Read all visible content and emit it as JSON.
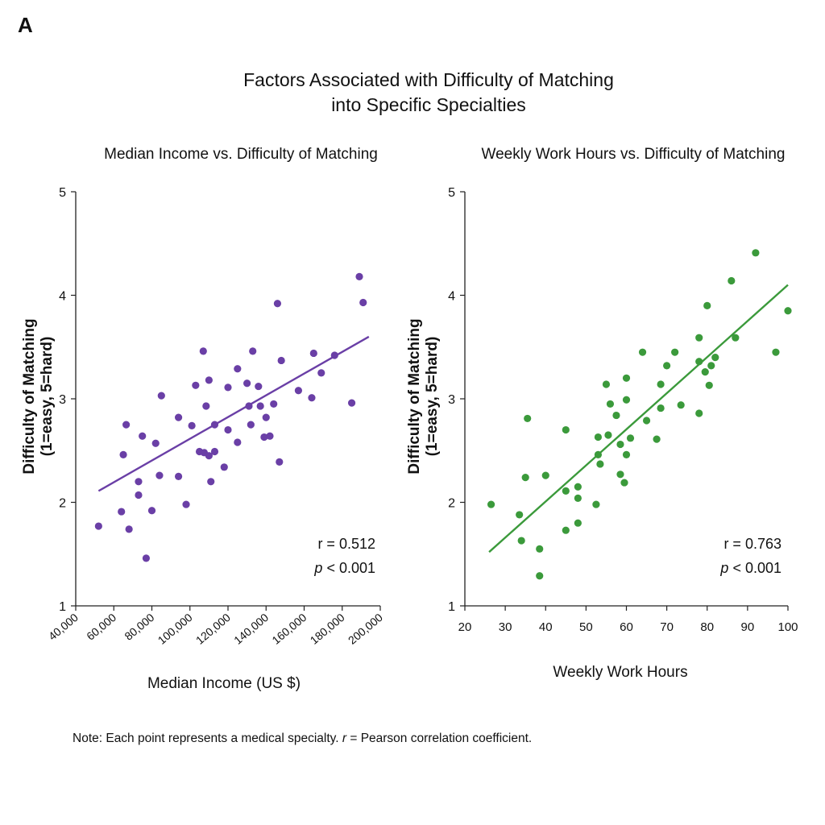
{
  "panel_label": "A",
  "title_line1": "Factors Associated with Difficulty of Matching",
  "title_line2": "into Specific Specialties",
  "note_prefix": "Note: Each point represents a medical specialty. ",
  "note_r": "r",
  "note_suffix": " = Pearson correlation coefficient.",
  "chart_data": [
    {
      "type": "scatter",
      "title": "Median Income vs. Difficulty of Matching",
      "xlabel": "Median Income (US $)",
      "ylabel_line1": "Difficulty of Matching",
      "ylabel_line2": "(1=easy, 5=hard)",
      "xlim": [
        40000,
        200000
      ],
      "ylim": [
        1,
        5
      ],
      "xticks": [
        40000,
        60000,
        80000,
        100000,
        120000,
        140000,
        160000,
        180000,
        200000
      ],
      "xtick_labels": [
        "40,000",
        "60,000",
        "80,000",
        "100,000",
        "120,000",
        "140,000",
        "160,000",
        "180,000",
        "200,000"
      ],
      "yticks": [
        1,
        2,
        3,
        4,
        5
      ],
      "color": "#6a3fa6",
      "r_text": "r = 0.512",
      "p_text": "p < 0.001",
      "trendline": {
        "x": [
          52000,
          194000
        ],
        "y": [
          2.11,
          3.6
        ]
      },
      "points": [
        [
          52000,
          1.77
        ],
        [
          64000,
          1.91
        ],
        [
          65000,
          2.46
        ],
        [
          66500,
          2.75
        ],
        [
          68000,
          1.74
        ],
        [
          73000,
          2.2
        ],
        [
          73000,
          2.07
        ],
        [
          75000,
          2.64
        ],
        [
          77000,
          1.46
        ],
        [
          80000,
          1.92
        ],
        [
          82000,
          2.57
        ],
        [
          84000,
          2.26
        ],
        [
          85000,
          3.03
        ],
        [
          94000,
          2.82
        ],
        [
          94000,
          2.25
        ],
        [
          98000,
          1.98
        ],
        [
          101000,
          2.74
        ],
        [
          103000,
          3.13
        ],
        [
          105000,
          2.49
        ],
        [
          107000,
          3.46
        ],
        [
          107500,
          2.48
        ],
        [
          108500,
          2.93
        ],
        [
          110000,
          3.18
        ],
        [
          110000,
          2.45
        ],
        [
          111000,
          2.2
        ],
        [
          113000,
          2.49
        ],
        [
          113000,
          2.75
        ],
        [
          118000,
          2.34
        ],
        [
          120000,
          2.7
        ],
        [
          120000,
          3.11
        ],
        [
          125000,
          2.58
        ],
        [
          125000,
          3.29
        ],
        [
          130000,
          3.15
        ],
        [
          131000,
          2.93
        ],
        [
          132000,
          2.75
        ],
        [
          133000,
          3.46
        ],
        [
          136000,
          3.12
        ],
        [
          137000,
          2.93
        ],
        [
          139000,
          2.63
        ],
        [
          140000,
          2.82
        ],
        [
          142000,
          2.64
        ],
        [
          144000,
          2.95
        ],
        [
          146000,
          3.92
        ],
        [
          147000,
          2.39
        ],
        [
          148000,
          3.37
        ],
        [
          157000,
          3.08
        ],
        [
          164000,
          3.01
        ],
        [
          165000,
          3.44
        ],
        [
          169000,
          3.25
        ],
        [
          176000,
          3.42
        ],
        [
          185000,
          2.96
        ],
        [
          189000,
          4.18
        ],
        [
          191000,
          3.93
        ]
      ]
    },
    {
      "type": "scatter",
      "title": "Weekly Work Hours vs. Difficulty of Matching",
      "xlabel": "Weekly Work Hours",
      "ylabel_line1": "Difficulty of Matching",
      "ylabel_line2": "(1=easy, 5=hard)",
      "xlim": [
        20,
        100
      ],
      "ylim": [
        1,
        5
      ],
      "xticks": [
        20,
        30,
        40,
        50,
        60,
        70,
        80,
        90,
        100
      ],
      "xtick_labels": [
        "20",
        "30",
        "40",
        "50",
        "60",
        "70",
        "80",
        "90",
        "100"
      ],
      "yticks": [
        1,
        2,
        3,
        4,
        5
      ],
      "color": "#3b9a3b",
      "r_text": "r = 0.763",
      "p_text": "p < 0.001",
      "trendline": {
        "x": [
          26,
          100
        ],
        "y": [
          1.52,
          4.1
        ]
      },
      "points": [
        [
          26.5,
          1.98
        ],
        [
          33.5,
          1.88
        ],
        [
          34,
          1.63
        ],
        [
          35,
          2.24
        ],
        [
          35.5,
          2.81
        ],
        [
          38.5,
          1.55
        ],
        [
          38.5,
          1.29
        ],
        [
          40,
          2.26
        ],
        [
          45,
          2.11
        ],
        [
          45,
          2.7
        ],
        [
          45,
          1.73
        ],
        [
          48,
          2.15
        ],
        [
          48,
          2.04
        ],
        [
          48,
          1.8
        ],
        [
          52.5,
          1.98
        ],
        [
          53,
          2.46
        ],
        [
          53,
          2.63
        ],
        [
          53.5,
          2.37
        ],
        [
          55,
          3.14
        ],
        [
          55.5,
          2.65
        ],
        [
          56,
          2.95
        ],
        [
          57.5,
          2.84
        ],
        [
          58.5,
          2.56
        ],
        [
          58.5,
          2.27
        ],
        [
          59.5,
          2.19
        ],
        [
          60,
          2.99
        ],
        [
          60,
          3.2
        ],
        [
          60,
          2.46
        ],
        [
          61,
          2.62
        ],
        [
          64,
          3.45
        ],
        [
          65,
          2.79
        ],
        [
          67.5,
          2.61
        ],
        [
          68.5,
          2.91
        ],
        [
          68.5,
          3.14
        ],
        [
          70,
          3.32
        ],
        [
          72,
          3.45
        ],
        [
          73.5,
          2.94
        ],
        [
          78,
          2.86
        ],
        [
          78,
          3.59
        ],
        [
          78,
          3.36
        ],
        [
          79.5,
          3.26
        ],
        [
          80,
          3.9
        ],
        [
          80.5,
          3.13
        ],
        [
          81,
          3.32
        ],
        [
          82,
          3.4
        ],
        [
          86,
          4.14
        ],
        [
          87,
          3.59
        ],
        [
          92,
          4.41
        ],
        [
          97,
          3.45
        ],
        [
          100,
          3.85
        ]
      ]
    }
  ]
}
